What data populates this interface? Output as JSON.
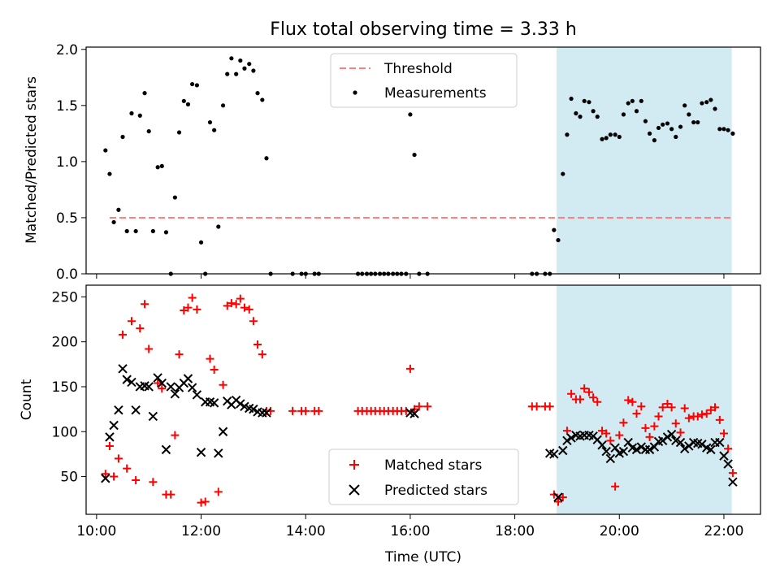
{
  "title": "Flux total observing time = 3.33 h",
  "chart_data": [
    {
      "type": "scatter",
      "panel": "top",
      "ylabel": "Matched/Predicted stars",
      "ylim": [
        0,
        2.02
      ],
      "yticks": [
        0.0,
        0.5,
        1.0,
        1.5,
        2.0
      ],
      "ytick_labels": [
        "0.0",
        "0.5",
        "1.0",
        "1.5",
        "2.0"
      ],
      "xlim": [
        9.8,
        22.7
      ],
      "highlight_span": [
        18.8,
        22.15
      ],
      "highlight_color": "#add8e6",
      "threshold": {
        "name": "Threshold",
        "value": 0.5,
        "x": [
          10.25,
          22.15
        ],
        "color": "#ff7f7f",
        "style": "dashed"
      },
      "series": [
        {
          "name": "Measurements",
          "color": "#000000",
          "marker": "dot",
          "x": [
            10.17,
            10.25,
            10.33,
            10.42,
            10.5,
            10.58,
            10.67,
            10.75,
            10.83,
            10.92,
            11.0,
            11.08,
            11.17,
            11.25,
            11.33,
            11.42,
            11.5,
            11.58,
            11.67,
            11.75,
            11.83,
            11.92,
            12.0,
            12.08,
            12.17,
            12.25,
            12.33,
            12.42,
            12.5,
            12.58,
            12.67,
            12.75,
            12.83,
            12.92,
            13.0,
            13.08,
            13.17,
            13.25,
            13.33,
            13.75,
            13.92,
            14.0,
            14.17,
            14.25,
            15.0,
            15.08,
            15.17,
            15.25,
            15.33,
            15.42,
            15.5,
            15.58,
            15.67,
            15.75,
            15.83,
            15.92,
            16.0,
            16.08,
            16.17,
            16.33,
            18.33,
            18.42,
            18.58,
            18.67,
            18.75,
            18.83,
            18.92,
            19.0,
            19.08,
            19.17,
            19.25,
            19.33,
            19.42,
            19.5,
            19.58,
            19.67,
            19.75,
            19.83,
            19.92,
            20.0,
            20.08,
            20.17,
            20.25,
            20.33,
            20.42,
            20.5,
            20.58,
            20.67,
            20.75,
            20.83,
            20.92,
            21.0,
            21.08,
            21.17,
            21.25,
            21.33,
            21.42,
            21.5,
            21.58,
            21.67,
            21.75,
            21.83,
            21.92,
            22.0,
            22.08,
            22.17
          ],
          "y": [
            1.1,
            0.89,
            0.46,
            0.57,
            1.22,
            0.38,
            1.43,
            0.38,
            1.41,
            1.61,
            1.27,
            0.38,
            0.95,
            0.96,
            0.37,
            0.0,
            0.68,
            1.26,
            1.54,
            1.51,
            1.69,
            1.68,
            0.28,
            0.0,
            1.35,
            1.28,
            0.42,
            1.5,
            1.78,
            1.92,
            1.78,
            1.9,
            1.83,
            1.87,
            1.81,
            1.61,
            1.55,
            1.03,
            0.0,
            0.0,
            0.0,
            0.0,
            0.0,
            0.0,
            0.0,
            0.0,
            0.0,
            0.0,
            0.0,
            0.0,
            0.0,
            0.0,
            0.0,
            0.0,
            0.0,
            0.0,
            1.42,
            1.06,
            0.0,
            0.0,
            0.0,
            0.0,
            0.0,
            0.0,
            0.39,
            0.3,
            0.89,
            1.24,
            1.56,
            1.43,
            1.4,
            1.54,
            1.53,
            1.45,
            1.4,
            1.2,
            1.21,
            1.24,
            1.24,
            1.22,
            1.42,
            1.52,
            1.54,
            1.45,
            1.54,
            1.36,
            1.25,
            1.19,
            1.3,
            1.33,
            1.34,
            1.29,
            1.22,
            1.31,
            1.5,
            1.42,
            1.35,
            1.35,
            1.52,
            1.53,
            1.55,
            1.47,
            1.29,
            1.29,
            1.28,
            1.25
          ]
        }
      ],
      "legend": {
        "placement": "top-center",
        "entries": [
          "Threshold",
          "Measurements"
        ]
      }
    },
    {
      "type": "scatter",
      "panel": "bottom",
      "xlabel": "Time (UTC)",
      "ylabel": "Count",
      "ylim": [
        8,
        263
      ],
      "yticks": [
        50,
        100,
        150,
        200,
        250
      ],
      "ytick_labels": [
        "50",
        "100",
        "150",
        "200",
        "250"
      ],
      "xlim": [
        9.8,
        22.7
      ],
      "xticks": [
        10,
        12,
        14,
        16,
        18,
        20,
        22
      ],
      "xtick_labels": [
        "10:00",
        "12:00",
        "14:00",
        "16:00",
        "18:00",
        "20:00",
        "22:00"
      ],
      "highlight_span": [
        18.8,
        22.15
      ],
      "highlight_color": "#add8e6",
      "series": [
        {
          "name": "Matched stars",
          "color": "#ff0000",
          "marker": "plus",
          "x": [
            10.17,
            10.25,
            10.33,
            10.42,
            10.5,
            10.58,
            10.67,
            10.75,
            10.83,
            10.92,
            11.0,
            11.08,
            11.17,
            11.25,
            11.33,
            11.42,
            11.5,
            11.58,
            11.67,
            11.75,
            11.83,
            11.92,
            12.0,
            12.08,
            12.17,
            12.25,
            12.33,
            12.42,
            12.5,
            12.58,
            12.67,
            12.75,
            12.83,
            12.92,
            13.0,
            13.08,
            13.17,
            13.25,
            13.33,
            13.75,
            13.92,
            14.0,
            14.17,
            14.25,
            15.0,
            15.08,
            15.17,
            15.25,
            15.33,
            15.42,
            15.5,
            15.58,
            15.67,
            15.75,
            15.83,
            15.92,
            16.0,
            16.08,
            16.17,
            16.33,
            18.33,
            18.42,
            18.58,
            18.67,
            18.75,
            18.83,
            18.92,
            19.0,
            19.08,
            19.17,
            19.25,
            19.33,
            19.42,
            19.5,
            19.58,
            19.67,
            19.75,
            19.83,
            19.92,
            20.0,
            20.08,
            20.17,
            20.25,
            20.33,
            20.42,
            20.5,
            20.58,
            20.67,
            20.75,
            20.83,
            20.92,
            21.0,
            21.08,
            21.17,
            21.25,
            21.33,
            21.42,
            21.5,
            21.58,
            21.67,
            21.75,
            21.83,
            21.92,
            22.0,
            22.08,
            22.17
          ],
          "y": [
            53,
            84,
            50,
            70,
            208,
            59,
            223,
            46,
            215,
            242,
            192,
            44,
            154,
            148,
            30,
            30,
            96,
            186,
            235,
            238,
            249,
            236,
            21,
            22,
            181,
            169,
            33,
            152,
            240,
            243,
            242,
            248,
            238,
            236,
            223,
            197,
            186,
            123,
            123,
            123,
            123,
            123,
            123,
            123,
            123,
            123,
            123,
            123,
            123,
            123,
            123,
            123,
            123,
            123,
            123,
            123,
            170,
            125,
            128,
            128,
            128,
            128,
            128,
            128,
            30,
            22,
            27,
            101,
            142,
            136,
            136,
            148,
            144,
            138,
            133,
            101,
            98,
            90,
            39,
            96,
            110,
            135,
            133,
            120,
            128,
            104,
            94,
            106,
            117,
            127,
            131,
            127,
            109,
            99,
            126,
            115,
            117,
            117,
            119,
            120,
            124,
            127,
            113,
            98,
            81,
            54
          ]
        },
        {
          "name": "Predicted stars",
          "color": "#000000",
          "marker": "x",
          "x": [
            10.17,
            10.25,
            10.33,
            10.42,
            10.5,
            10.58,
            10.67,
            10.75,
            10.83,
            10.92,
            11.0,
            11.08,
            11.17,
            11.25,
            11.33,
            11.42,
            11.5,
            11.58,
            11.67,
            11.75,
            11.83,
            11.92,
            12.0,
            12.08,
            12.17,
            12.25,
            12.33,
            12.42,
            12.5,
            12.58,
            12.67,
            12.75,
            12.83,
            12.92,
            13.0,
            13.08,
            13.17,
            13.25,
            16.0,
            16.08,
            18.67,
            18.75,
            18.83,
            18.92,
            19.0,
            19.08,
            19.17,
            19.25,
            19.33,
            19.42,
            19.5,
            19.58,
            19.67,
            19.75,
            19.83,
            19.92,
            20.0,
            20.08,
            20.17,
            20.25,
            20.33,
            20.42,
            20.5,
            20.58,
            20.67,
            20.75,
            20.83,
            20.92,
            21.0,
            21.08,
            21.17,
            21.25,
            21.33,
            21.42,
            21.5,
            21.58,
            21.67,
            21.75,
            21.83,
            21.92,
            22.0,
            22.08,
            22.17
          ],
          "y": [
            48,
            94,
            107,
            124,
            170,
            158,
            155,
            124,
            150,
            151,
            150,
            117,
            160,
            154,
            80,
            150,
            142,
            149,
            154,
            159,
            149,
            141,
            77,
            133,
            133,
            132,
            76,
            100,
            134,
            130,
            135,
            131,
            128,
            126,
            125,
            122,
            121,
            121,
            121,
            120,
            76,
            75,
            27,
            79,
            90,
            93,
            96,
            95,
            96,
            96,
            95,
            91,
            85,
            78,
            70,
            82,
            76,
            78,
            88,
            82,
            80,
            83,
            80,
            80,
            83,
            89,
            90,
            94,
            97,
            90,
            88,
            81,
            84,
            88,
            87,
            86,
            82,
            80,
            88,
            88,
            73,
            64,
            44
          ]
        }
      ],
      "legend": {
        "placement": "bottom-center",
        "entries": [
          "Matched stars",
          "Predicted stars"
        ]
      }
    }
  ]
}
